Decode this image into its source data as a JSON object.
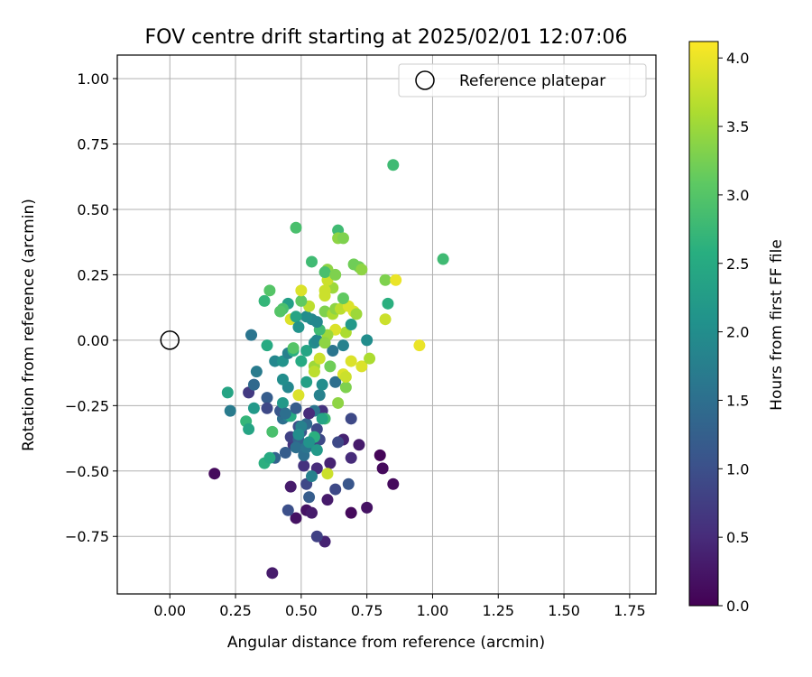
{
  "chart_data": {
    "type": "scatter",
    "title": "FOV centre drift starting at 2025/02/01 12:07:06",
    "xlabel": "Angular distance from reference (arcmin)",
    "ylabel": "Rotation from reference (arcmin)",
    "xlim": [
      -0.2,
      1.85
    ],
    "ylim": [
      -0.97,
      1.09
    ],
    "xticks": [
      0.0,
      0.25,
      0.5,
      0.75,
      1.0,
      1.25,
      1.5,
      1.75
    ],
    "xtick_labels": [
      "0.00",
      "0.25",
      "0.50",
      "0.75",
      "1.00",
      "1.25",
      "1.50",
      "1.75"
    ],
    "yticks": [
      -0.75,
      -0.5,
      -0.25,
      0.0,
      0.25,
      0.5,
      0.75,
      1.0
    ],
    "ytick_labels": [
      "−0.75",
      "−0.50",
      "−0.25",
      "0.00",
      "0.25",
      "0.50",
      "0.75",
      "1.00"
    ],
    "grid": true,
    "legend": {
      "position": "top-right",
      "entries": [
        "Reference platepar"
      ]
    },
    "reference_point": {
      "label": "Reference platepar",
      "x": 0.0,
      "y": 0.0
    },
    "colorbar": {
      "label": "Hours from first FF file",
      "range": [
        0.0,
        4.12
      ],
      "ticks": [
        0.0,
        0.5,
        1.0,
        1.5,
        2.0,
        2.5,
        3.0,
        3.5,
        4.0
      ],
      "tick_labels": [
        "0.0",
        "0.5",
        "1.0",
        "1.5",
        "2.0",
        "2.5",
        "3.0",
        "3.5",
        "4.0"
      ],
      "colormap": "viridis"
    },
    "points": [
      [
        0.17,
        -0.51,
        0.1
      ],
      [
        0.39,
        -0.89,
        0.3
      ],
      [
        0.48,
        -0.68,
        0.2
      ],
      [
        0.52,
        -0.65,
        0.2
      ],
      [
        0.54,
        -0.66,
        0.3
      ],
      [
        0.46,
        -0.56,
        0.3
      ],
      [
        0.59,
        -0.77,
        0.4
      ],
      [
        0.56,
        -0.75,
        0.8
      ],
      [
        0.6,
        -0.61,
        0.3
      ],
      [
        0.69,
        -0.66,
        0.1
      ],
      [
        0.75,
        -0.64,
        0.2
      ],
      [
        0.8,
        -0.44,
        0.05
      ],
      [
        0.81,
        -0.49,
        0.1
      ],
      [
        0.85,
        -0.55,
        0.1
      ],
      [
        0.72,
        -0.4,
        0.3
      ],
      [
        0.69,
        -0.45,
        0.5
      ],
      [
        0.66,
        -0.38,
        0.4
      ],
      [
        0.64,
        -0.39,
        0.9
      ],
      [
        0.61,
        -0.47,
        0.4
      ],
      [
        0.63,
        -0.57,
        0.9
      ],
      [
        0.68,
        -0.55,
        1.1
      ],
      [
        0.56,
        -0.49,
        0.5
      ],
      [
        0.51,
        -0.48,
        0.6
      ],
      [
        0.52,
        -0.55,
        0.9
      ],
      [
        0.53,
        -0.6,
        1.2
      ],
      [
        0.45,
        -0.65,
        1.0
      ],
      [
        0.4,
        -0.45,
        1.3
      ],
      [
        0.47,
        -0.4,
        0.6
      ],
      [
        0.46,
        -0.37,
        0.8
      ],
      [
        0.44,
        -0.43,
        1.2
      ],
      [
        0.49,
        -0.33,
        1.0
      ],
      [
        0.52,
        -0.32,
        1.4
      ],
      [
        0.55,
        -0.4,
        0.7
      ],
      [
        0.57,
        -0.38,
        0.9
      ],
      [
        0.58,
        -0.27,
        0.6
      ],
      [
        0.55,
        -0.27,
        1.6
      ],
      [
        0.59,
        -0.3,
        2.8
      ],
      [
        0.56,
        -0.34,
        0.9
      ],
      [
        0.53,
        -0.28,
        0.5
      ],
      [
        0.5,
        -0.35,
        1.1
      ],
      [
        0.49,
        -0.38,
        1.3
      ],
      [
        0.51,
        -0.44,
        1.5
      ],
      [
        0.48,
        -0.41,
        1.5
      ],
      [
        0.52,
        -0.41,
        1.6
      ],
      [
        0.55,
        -0.37,
        2.6
      ],
      [
        0.56,
        -0.42,
        2.2
      ],
      [
        0.54,
        -0.52,
        1.8
      ],
      [
        0.6,
        -0.51,
        3.8
      ],
      [
        0.69,
        -0.3,
        0.9
      ],
      [
        0.43,
        -0.3,
        1.5
      ],
      [
        0.45,
        -0.29,
        1.8
      ],
      [
        0.42,
        -0.27,
        1.1
      ],
      [
        0.37,
        -0.22,
        1.2
      ],
      [
        0.37,
        -0.26,
        0.9
      ],
      [
        0.3,
        -0.2,
        0.7
      ],
      [
        0.32,
        -0.17,
        1.4
      ],
      [
        0.32,
        -0.26,
        2.2
      ],
      [
        0.29,
        -0.31,
        2.7
      ],
      [
        0.3,
        -0.34,
        2.4
      ],
      [
        0.23,
        -0.27,
        1.7
      ],
      [
        0.22,
        -0.2,
        2.4
      ],
      [
        0.36,
        -0.47,
        2.6
      ],
      [
        0.38,
        -0.45,
        2.5
      ],
      [
        0.39,
        -0.35,
        2.9
      ],
      [
        0.46,
        -0.29,
        2.5
      ],
      [
        0.43,
        -0.24,
        2.2
      ],
      [
        0.44,
        -0.28,
        1.5
      ],
      [
        0.48,
        -0.26,
        1.2
      ],
      [
        0.5,
        -0.33,
        1.8
      ],
      [
        0.49,
        -0.36,
        2.0
      ],
      [
        0.53,
        -0.39,
        2.1
      ],
      [
        0.58,
        -0.3,
        2.4
      ],
      [
        0.57,
        -0.21,
        1.8
      ],
      [
        0.52,
        -0.16,
        2.3
      ],
      [
        0.45,
        -0.18,
        1.9
      ],
      [
        0.43,
        -0.15,
        2.0
      ],
      [
        0.49,
        -0.21,
        3.9
      ],
      [
        0.33,
        -0.12,
        1.7
      ],
      [
        0.4,
        -0.08,
        1.9
      ],
      [
        0.43,
        -0.08,
        2.1
      ],
      [
        0.45,
        -0.05,
        1.8
      ],
      [
        0.47,
        -0.04,
        2.6
      ],
      [
        0.47,
        -0.03,
        3.0
      ],
      [
        0.5,
        -0.08,
        2.5
      ],
      [
        0.52,
        -0.04,
        2.4
      ],
      [
        0.55,
        -0.01,
        2.0
      ],
      [
        0.56,
        0.0,
        1.9
      ],
      [
        0.55,
        -0.1,
        3.5
      ],
      [
        0.55,
        -0.12,
        3.7
      ],
      [
        0.57,
        -0.07,
        3.8
      ],
      [
        0.58,
        -0.17,
        2.0
      ],
      [
        0.61,
        -0.1,
        3.2
      ],
      [
        0.63,
        -0.16,
        1.5
      ],
      [
        0.64,
        -0.24,
        3.4
      ],
      [
        0.66,
        -0.13,
        3.9
      ],
      [
        0.67,
        -0.18,
        3.3
      ],
      [
        0.67,
        -0.14,
        3.8
      ],
      [
        0.69,
        -0.08,
        3.9
      ],
      [
        0.73,
        -0.1,
        3.9
      ],
      [
        0.76,
        -0.07,
        3.6
      ],
      [
        0.75,
        0.0,
        2.0
      ],
      [
        0.62,
        -0.04,
        1.6
      ],
      [
        0.66,
        -0.02,
        1.8
      ],
      [
        0.67,
        0.03,
        3.6
      ],
      [
        0.63,
        0.04,
        3.9
      ],
      [
        0.6,
        0.02,
        3.5
      ],
      [
        0.59,
        -0.01,
        3.4
      ],
      [
        0.57,
        0.04,
        2.8
      ],
      [
        0.54,
        0.08,
        1.9
      ],
      [
        0.52,
        0.09,
        2.0
      ],
      [
        0.56,
        0.07,
        1.9
      ],
      [
        0.59,
        0.11,
        3.3
      ],
      [
        0.62,
        0.1,
        3.6
      ],
      [
        0.63,
        0.12,
        3.4
      ],
      [
        0.65,
        0.12,
        3.7
      ],
      [
        0.68,
        0.13,
        3.9
      ],
      [
        0.7,
        0.11,
        3.9
      ],
      [
        0.71,
        0.1,
        3.5
      ],
      [
        0.69,
        0.06,
        2.2
      ],
      [
        0.66,
        0.16,
        3.1
      ],
      [
        0.62,
        0.2,
        3.5
      ],
      [
        0.6,
        0.23,
        3.8
      ],
      [
        0.59,
        0.19,
        3.8
      ],
      [
        0.59,
        0.17,
        3.8
      ],
      [
        0.6,
        0.27,
        3.4
      ],
      [
        0.59,
        0.26,
        2.9
      ],
      [
        0.63,
        0.25,
        3.3
      ],
      [
        0.54,
        0.3,
        2.8
      ],
      [
        0.53,
        0.13,
        3.7
      ],
      [
        0.5,
        0.15,
        3.1
      ],
      [
        0.5,
        0.19,
        3.9
      ],
      [
        0.46,
        0.08,
        3.9
      ],
      [
        0.45,
        0.14,
        2.3
      ],
      [
        0.43,
        0.12,
        2.9
      ],
      [
        0.42,
        0.11,
        3.0
      ],
      [
        0.48,
        0.09,
        2.4
      ],
      [
        0.49,
        0.05,
        2.1
      ],
      [
        0.36,
        0.15,
        2.7
      ],
      [
        0.38,
        0.19,
        3.0
      ],
      [
        0.37,
        -0.02,
        2.5
      ],
      [
        0.31,
        0.02,
        1.6
      ],
      [
        0.48,
        0.43,
        2.9
      ],
      [
        0.64,
        0.42,
        2.8
      ],
      [
        0.64,
        0.39,
        3.4
      ],
      [
        0.66,
        0.39,
        3.3
      ],
      [
        0.7,
        0.29,
        3.2
      ],
      [
        0.72,
        0.28,
        3.2
      ],
      [
        0.73,
        0.27,
        3.4
      ],
      [
        0.82,
        0.23,
        3.3
      ],
      [
        0.86,
        0.23,
        4.0
      ],
      [
        0.83,
        0.14,
        2.6
      ],
      [
        0.82,
        0.08,
        3.8
      ],
      [
        0.95,
        -0.02,
        4.0
      ],
      [
        0.85,
        0.67,
        2.8
      ],
      [
        1.04,
        0.31,
        2.8
      ]
    ]
  }
}
